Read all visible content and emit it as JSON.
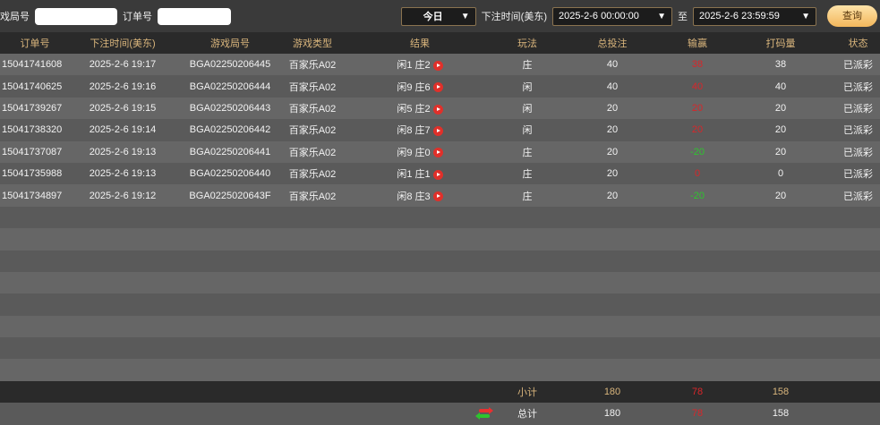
{
  "filters": {
    "game_round_label": "戏局号",
    "order_label": "订单号",
    "game_round_value": "",
    "order_value": "",
    "period": "今日",
    "time_label": "下注时间(美东)",
    "start": "2025-2-6 00:00:00",
    "to_label": "至",
    "end": "2025-2-6 23:59:59",
    "query": "查询"
  },
  "columns": [
    "订单号",
    "下注时间(美东)",
    "游戏局号",
    "游戏类型",
    "结果",
    "玩法",
    "总投注",
    "输赢",
    "打码量",
    "状态"
  ],
  "rows": [
    [
      "15041741608",
      "2025-2-6 19:17",
      "BGA02250206445",
      "百家乐A02",
      "闲1 庄2",
      "庄",
      "40",
      "38",
      "38",
      "已派彩"
    ],
    [
      "15041740625",
      "2025-2-6 19:16",
      "BGA02250206444",
      "百家乐A02",
      "闲9 庄6",
      "闲",
      "40",
      "40",
      "40",
      "已派彩"
    ],
    [
      "15041739267",
      "2025-2-6 19:15",
      "BGA02250206443",
      "百家乐A02",
      "闲5 庄2",
      "闲",
      "20",
      "20",
      "20",
      "已派彩"
    ],
    [
      "15041738320",
      "2025-2-6 19:14",
      "BGA02250206442",
      "百家乐A02",
      "闲8 庄7",
      "闲",
      "20",
      "20",
      "20",
      "已派彩"
    ],
    [
      "15041737087",
      "2025-2-6 19:13",
      "BGA02250206441",
      "百家乐A02",
      "闲9 庄0",
      "庄",
      "20",
      "-20",
      "20",
      "已派彩"
    ],
    [
      "15041735988",
      "2025-2-6 19:13",
      "BGA02250206440",
      "百家乐A02",
      "闲1 庄1",
      "庄",
      "20",
      "0",
      "0",
      "已派彩"
    ],
    [
      "15041734897",
      "2025-2-6 19:12",
      "BGA0225020643F",
      "百家乐A02",
      "闲8 庄3",
      "庄",
      "20",
      "-20",
      "20",
      "已派彩"
    ]
  ],
  "subtotal": {
    "label": "小计",
    "bet": "180",
    "win": "78",
    "valid": "158"
  },
  "total": {
    "label": "总计",
    "bet": "180",
    "win": "78",
    "valid": "158"
  },
  "colors": {
    "win": "#d8262a",
    "loss": "#2ec42e",
    "header_text": "#d9b57c"
  }
}
